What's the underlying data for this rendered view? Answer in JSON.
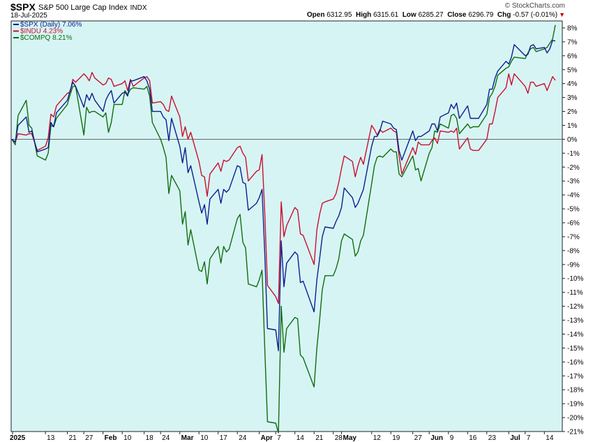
{
  "header": {
    "symbol": "$SPX",
    "description": "S&P 500 Large Cap Index",
    "exchange": "INDX",
    "date": "18-Jul-2025",
    "watermark": "© StockCharts.com",
    "ohlc": [
      {
        "label": "Open",
        "value": "6312.95"
      },
      {
        "label": "High",
        "value": "6315.61"
      },
      {
        "label": "Low",
        "value": "6285.27"
      },
      {
        "label": "Close",
        "value": "6296.79"
      },
      {
        "label": "Chg",
        "value": "-0.57 (-0.01%)"
      }
    ],
    "change_direction": "down"
  },
  "colors": {
    "background": "#d7f4f4",
    "spx": "#0a1f8f",
    "indu": "#c8102e",
    "compq": "#0f6e0f",
    "zero_line": "#555555"
  },
  "chart_data": {
    "type": "line",
    "title": "",
    "ylabel": "",
    "y_unit": "%",
    "ylim": [
      -21,
      8.5
    ],
    "yticks": [
      8,
      7,
      6,
      5,
      4,
      3,
      2,
      1,
      0,
      -1,
      -2,
      -3,
      -4,
      -5,
      -6,
      -7,
      -8,
      -9,
      -10,
      -11,
      -12,
      -13,
      -14,
      -15,
      -16,
      -17,
      -18,
      -19,
      -20,
      -21
    ],
    "y_axis_side": "right",
    "grid": false,
    "zero_line": true,
    "legend_placement": "top-left",
    "x_tick_labels": [
      {
        "label": "2025",
        "bold": true,
        "date": "2025-01-01"
      },
      {
        "label": "13",
        "bold": false,
        "date": "2025-01-13"
      },
      {
        "label": "21",
        "bold": false,
        "date": "2025-01-21"
      },
      {
        "label": "27",
        "bold": false,
        "date": "2025-01-27"
      },
      {
        "label": "Feb",
        "bold": true,
        "date": "2025-02-03"
      },
      {
        "label": "10",
        "bold": false,
        "date": "2025-02-10"
      },
      {
        "label": "18",
        "bold": false,
        "date": "2025-02-18"
      },
      {
        "label": "24",
        "bold": false,
        "date": "2025-02-24"
      },
      {
        "label": "Mar",
        "bold": true,
        "date": "2025-03-03"
      },
      {
        "label": "10",
        "bold": false,
        "date": "2025-03-10"
      },
      {
        "label": "17",
        "bold": false,
        "date": "2025-03-17"
      },
      {
        "label": "24",
        "bold": false,
        "date": "2025-03-24"
      },
      {
        "label": "Apr",
        "bold": true,
        "date": "2025-04-01"
      },
      {
        "label": "7",
        "bold": false,
        "date": "2025-04-07"
      },
      {
        "label": "14",
        "bold": false,
        "date": "2025-04-14"
      },
      {
        "label": "21",
        "bold": false,
        "date": "2025-04-21"
      },
      {
        "label": "28",
        "bold": false,
        "date": "2025-04-28"
      },
      {
        "label": "May",
        "bold": true,
        "date": "2025-05-01"
      },
      {
        "label": "12",
        "bold": false,
        "date": "2025-05-12"
      },
      {
        "label": "19",
        "bold": false,
        "date": "2025-05-19"
      },
      {
        "label": "27",
        "bold": false,
        "date": "2025-05-27"
      },
      {
        "label": "Jun",
        "bold": true,
        "date": "2025-06-02"
      },
      {
        "label": "9",
        "bold": false,
        "date": "2025-06-09"
      },
      {
        "label": "16",
        "bold": false,
        "date": "2025-06-16"
      },
      {
        "label": "23",
        "bold": false,
        "date": "2025-06-23"
      },
      {
        "label": "Jul",
        "bold": true,
        "date": "2025-07-01"
      },
      {
        "label": "7",
        "bold": false,
        "date": "2025-07-07"
      },
      {
        "label": "14",
        "bold": false,
        "date": "2025-07-14"
      }
    ],
    "x": [
      "2024-12-31",
      "2025-01-02",
      "2025-01-03",
      "2025-01-06",
      "2025-01-07",
      "2025-01-08",
      "2025-01-10",
      "2025-01-13",
      "2025-01-14",
      "2025-01-15",
      "2025-01-16",
      "2025-01-17",
      "2025-01-21",
      "2025-01-22",
      "2025-01-23",
      "2025-01-24",
      "2025-01-27",
      "2025-01-28",
      "2025-01-29",
      "2025-01-30",
      "2025-01-31",
      "2025-02-03",
      "2025-02-04",
      "2025-02-05",
      "2025-02-06",
      "2025-02-07",
      "2025-02-10",
      "2025-02-11",
      "2025-02-12",
      "2025-02-13",
      "2025-02-14",
      "2025-02-18",
      "2025-02-19",
      "2025-02-20",
      "2025-02-21",
      "2025-02-24",
      "2025-02-25",
      "2025-02-26",
      "2025-02-27",
      "2025-02-28",
      "2025-03-03",
      "2025-03-04",
      "2025-03-05",
      "2025-03-06",
      "2025-03-07",
      "2025-03-10",
      "2025-03-11",
      "2025-03-12",
      "2025-03-13",
      "2025-03-14",
      "2025-03-17",
      "2025-03-18",
      "2025-03-19",
      "2025-03-20",
      "2025-03-21",
      "2025-03-24",
      "2025-03-25",
      "2025-03-26",
      "2025-03-27",
      "2025-03-28",
      "2025-03-31",
      "2025-04-01",
      "2025-04-02",
      "2025-04-03",
      "2025-04-04",
      "2025-04-07",
      "2025-04-08",
      "2025-04-09",
      "2025-04-10",
      "2025-04-11",
      "2025-04-14",
      "2025-04-15",
      "2025-04-16",
      "2025-04-17",
      "2025-04-21",
      "2025-04-22",
      "2025-04-23",
      "2025-04-24",
      "2025-04-25",
      "2025-04-28",
      "2025-04-29",
      "2025-04-30",
      "2025-05-01",
      "2025-05-02",
      "2025-05-05",
      "2025-05-06",
      "2025-05-07",
      "2025-05-08",
      "2025-05-09",
      "2025-05-12",
      "2025-05-13",
      "2025-05-14",
      "2025-05-15",
      "2025-05-16",
      "2025-05-19",
      "2025-05-20",
      "2025-05-21",
      "2025-05-22",
      "2025-05-23",
      "2025-05-27",
      "2025-05-28",
      "2025-05-29",
      "2025-05-30",
      "2025-06-02",
      "2025-06-03",
      "2025-06-04",
      "2025-06-05",
      "2025-06-06",
      "2025-06-09",
      "2025-06-10",
      "2025-06-11",
      "2025-06-12",
      "2025-06-13",
      "2025-06-16",
      "2025-06-17",
      "2025-06-18",
      "2025-06-20",
      "2025-06-23",
      "2025-06-24",
      "2025-06-25",
      "2025-06-26",
      "2025-06-27",
      "2025-06-30",
      "2025-07-01",
      "2025-07-02",
      "2025-07-03",
      "2025-07-07",
      "2025-07-08",
      "2025-07-09",
      "2025-07-10",
      "2025-07-11",
      "2025-07-14",
      "2025-07-15",
      "2025-07-16",
      "2025-07-17",
      "2025-07-18"
    ],
    "series": [
      {
        "name": "$SPX (Daily)",
        "legend": "$SPX (Daily) 7.06%",
        "color_key": "spx",
        "values": [
          0,
          -0.2,
          1.0,
          1.6,
          0.5,
          0.6,
          -0.9,
          -0.7,
          -0.6,
          1.2,
          0.9,
          1.9,
          2.8,
          3.5,
          4.1,
          3.8,
          2.3,
          3.2,
          2.8,
          3.3,
          2.8,
          2.0,
          2.8,
          3.2,
          3.5,
          2.6,
          3.3,
          3.4,
          3.1,
          4.2,
          4.2,
          4.5,
          4.2,
          3.6,
          2.0,
          2.0,
          1.6,
          1.4,
          -0.1,
          1.5,
          -0.5,
          -1.7,
          -0.6,
          -2.4,
          -1.9,
          -4.5,
          -5.3,
          -4.7,
          -6.1,
          -4.3,
          -3.6,
          -4.6,
          -3.6,
          -3.8,
          -3.6,
          -1.9,
          -2.0,
          -3.1,
          -3.2,
          -5.1,
          -4.6,
          -4.2,
          -3.6,
          -8.2,
          -13.6,
          -13.7,
          -15.2,
          -7.3,
          -10.6,
          -8.9,
          -8.1,
          -8.3,
          -10.3,
          -10.2,
          -12.4,
          -10.1,
          -8.6,
          -7.0,
          -6.3,
          -6.4,
          -5.9,
          -5.5,
          -4.9,
          -3.5,
          -4.2,
          -4.9,
          -4.6,
          -4.1,
          -3.6,
          -0.5,
          0.2,
          0.2,
          0.6,
          1.3,
          1.1,
          0.8,
          0.7,
          -0.8,
          -1.5,
          0.6,
          -0.1,
          0.2,
          0.2,
          0.6,
          1.1,
          1.1,
          0.6,
          1.6,
          1.9,
          2.5,
          2.2,
          2.6,
          1.5,
          2.4,
          1.5,
          1.5,
          1.5,
          2.5,
          3.6,
          3.6,
          4.4,
          4.9,
          5.6,
          5.4,
          5.9,
          6.8,
          6.0,
          6.1,
          6.7,
          6.8,
          6.5,
          6.6,
          6.2,
          6.5,
          7.1,
          7.06
        ]
      },
      {
        "name": "$INDU",
        "legend": "$INDU 4.23%",
        "color_key": "indu",
        "values": [
          0,
          -0.2,
          0.4,
          0.3,
          0.4,
          0.4,
          -0.8,
          -0.5,
          0.1,
          1.8,
          1.6,
          2.4,
          3.3,
          3.4,
          4.3,
          4.1,
          4.7,
          4.5,
          4.2,
          4.8,
          4.4,
          3.9,
          4.0,
          4.4,
          4.3,
          3.8,
          4.0,
          4.2,
          3.5,
          4.3,
          3.8,
          4.4,
          4.5,
          4.2,
          2.6,
          2.7,
          2.5,
          2.1,
          2.0,
          3.1,
          1.6,
          0.2,
          0.9,
          0.0,
          0.5,
          -1.6,
          -2.6,
          -2.7,
          -4.1,
          -2.5,
          -1.7,
          -2.3,
          -1.5,
          -1.6,
          -1.5,
          -0.6,
          -0.5,
          -1.0,
          -1.3,
          -3.0,
          -2.3,
          -2.2,
          -1.1,
          -5.3,
          -10.5,
          -11.3,
          -11.8,
          -4.5,
          -7.0,
          -6.2,
          -4.9,
          -5.1,
          -6.8,
          -6.9,
          -9.0,
          -6.5,
          -5.4,
          -4.6,
          -4.5,
          -4.3,
          -3.9,
          -3.1,
          -2.1,
          -1.2,
          -1.6,
          -2.7,
          -1.9,
          -1.3,
          -1.8,
          1.0,
          0.7,
          0.3,
          0.7,
          0.5,
          0.8,
          0.6,
          0.5,
          -1.2,
          -2.5,
          -0.6,
          -1.1,
          -0.2,
          -0.4,
          -0.4,
          -0.1,
          0.1,
          -0.3,
          0.6,
          0.5,
          0.6,
          0.5,
          0.8,
          -0.7,
          0.1,
          -0.7,
          -0.8,
          -0.8,
          0.0,
          1.1,
          1.1,
          2.0,
          3.0,
          3.7,
          4.7,
          3.9,
          4.7,
          3.8,
          3.3,
          4.1,
          4.1,
          3.8,
          4.0,
          3.5,
          4.0,
          4.5,
          4.23
        ]
      },
      {
        "name": "$COMPQ",
        "legend": "$COMPQ 8.21%",
        "color_key": "compq",
        "values": [
          0,
          -0.4,
          1.7,
          2.8,
          1.0,
          0.8,
          -1.2,
          -1.5,
          -1.0,
          1.0,
          0.9,
          1.5,
          2.5,
          3.2,
          3.8,
          3.8,
          0.3,
          2.3,
          1.9,
          2.0,
          2.0,
          1.6,
          1.9,
          0.5,
          1.2,
          2.5,
          2.5,
          3.5,
          3.2,
          3.6,
          3.7,
          3.6,
          3.8,
          3.1,
          1.2,
          0.0,
          -0.6,
          -1.3,
          -3.9,
          -2.6,
          -3.7,
          -6.1,
          -5.2,
          -7.6,
          -6.5,
          -9.4,
          -9.5,
          -8.8,
          -10.4,
          -8.6,
          -7.7,
          -8.9,
          -7.7,
          -8.1,
          -7.9,
          -5.7,
          -5.4,
          -7.4,
          -7.8,
          -10.4,
          -10.6,
          -10.1,
          -9.4,
          -15.0,
          -20.3,
          -20.4,
          -21.1,
          -12.0,
          -15.3,
          -13.6,
          -12.8,
          -12.9,
          -15.5,
          -15.7,
          -17.8,
          -15.0,
          -13.0,
          -10.8,
          -9.8,
          -9.8,
          -9.3,
          -8.6,
          -7.3,
          -6.8,
          -7.2,
          -8.4,
          -8.1,
          -7.3,
          -6.9,
          -3.2,
          -1.9,
          -1.3,
          -1.2,
          -1.3,
          -0.7,
          -0.9,
          -0.9,
          -2.5,
          -2.7,
          -1.2,
          -2.2,
          -2.1,
          -3.0,
          -1.0,
          -0.6,
          0.6,
          0.5,
          1.1,
          0.8,
          1.7,
          1.8,
          1.5,
          0.4,
          1.1,
          0.8,
          0.9,
          0.9,
          1.8,
          3.0,
          3.3,
          3.8,
          4.6,
          5.1,
          5.2,
          5.6,
          5.9,
          5.8,
          6.2,
          6.5,
          6.6,
          6.3,
          6.5,
          6.6,
          6.9,
          7.2,
          8.21
        ]
      }
    ]
  }
}
